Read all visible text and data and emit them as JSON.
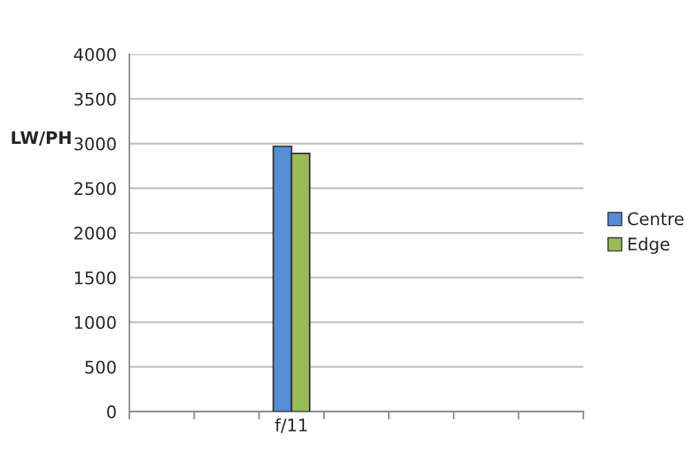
{
  "chart_data": {
    "type": "bar",
    "ylabel": "LW/PH",
    "categories": [
      null,
      null,
      "f/11",
      null,
      null,
      null,
      null
    ],
    "series": [
      {
        "name": "Centre",
        "color": "#558ed5",
        "values": [
          null,
          null,
          2970,
          null,
          null,
          null,
          null
        ]
      },
      {
        "name": "Edge",
        "color": "#9bbb59",
        "values": [
          null,
          null,
          2890,
          null,
          null,
          null,
          null
        ]
      }
    ],
    "ylim": [
      0,
      4000
    ],
    "yticks": [
      0,
      500,
      1000,
      1500,
      2000,
      2500,
      3000,
      3500,
      4000
    ],
    "grid": "y",
    "legend": "right"
  }
}
